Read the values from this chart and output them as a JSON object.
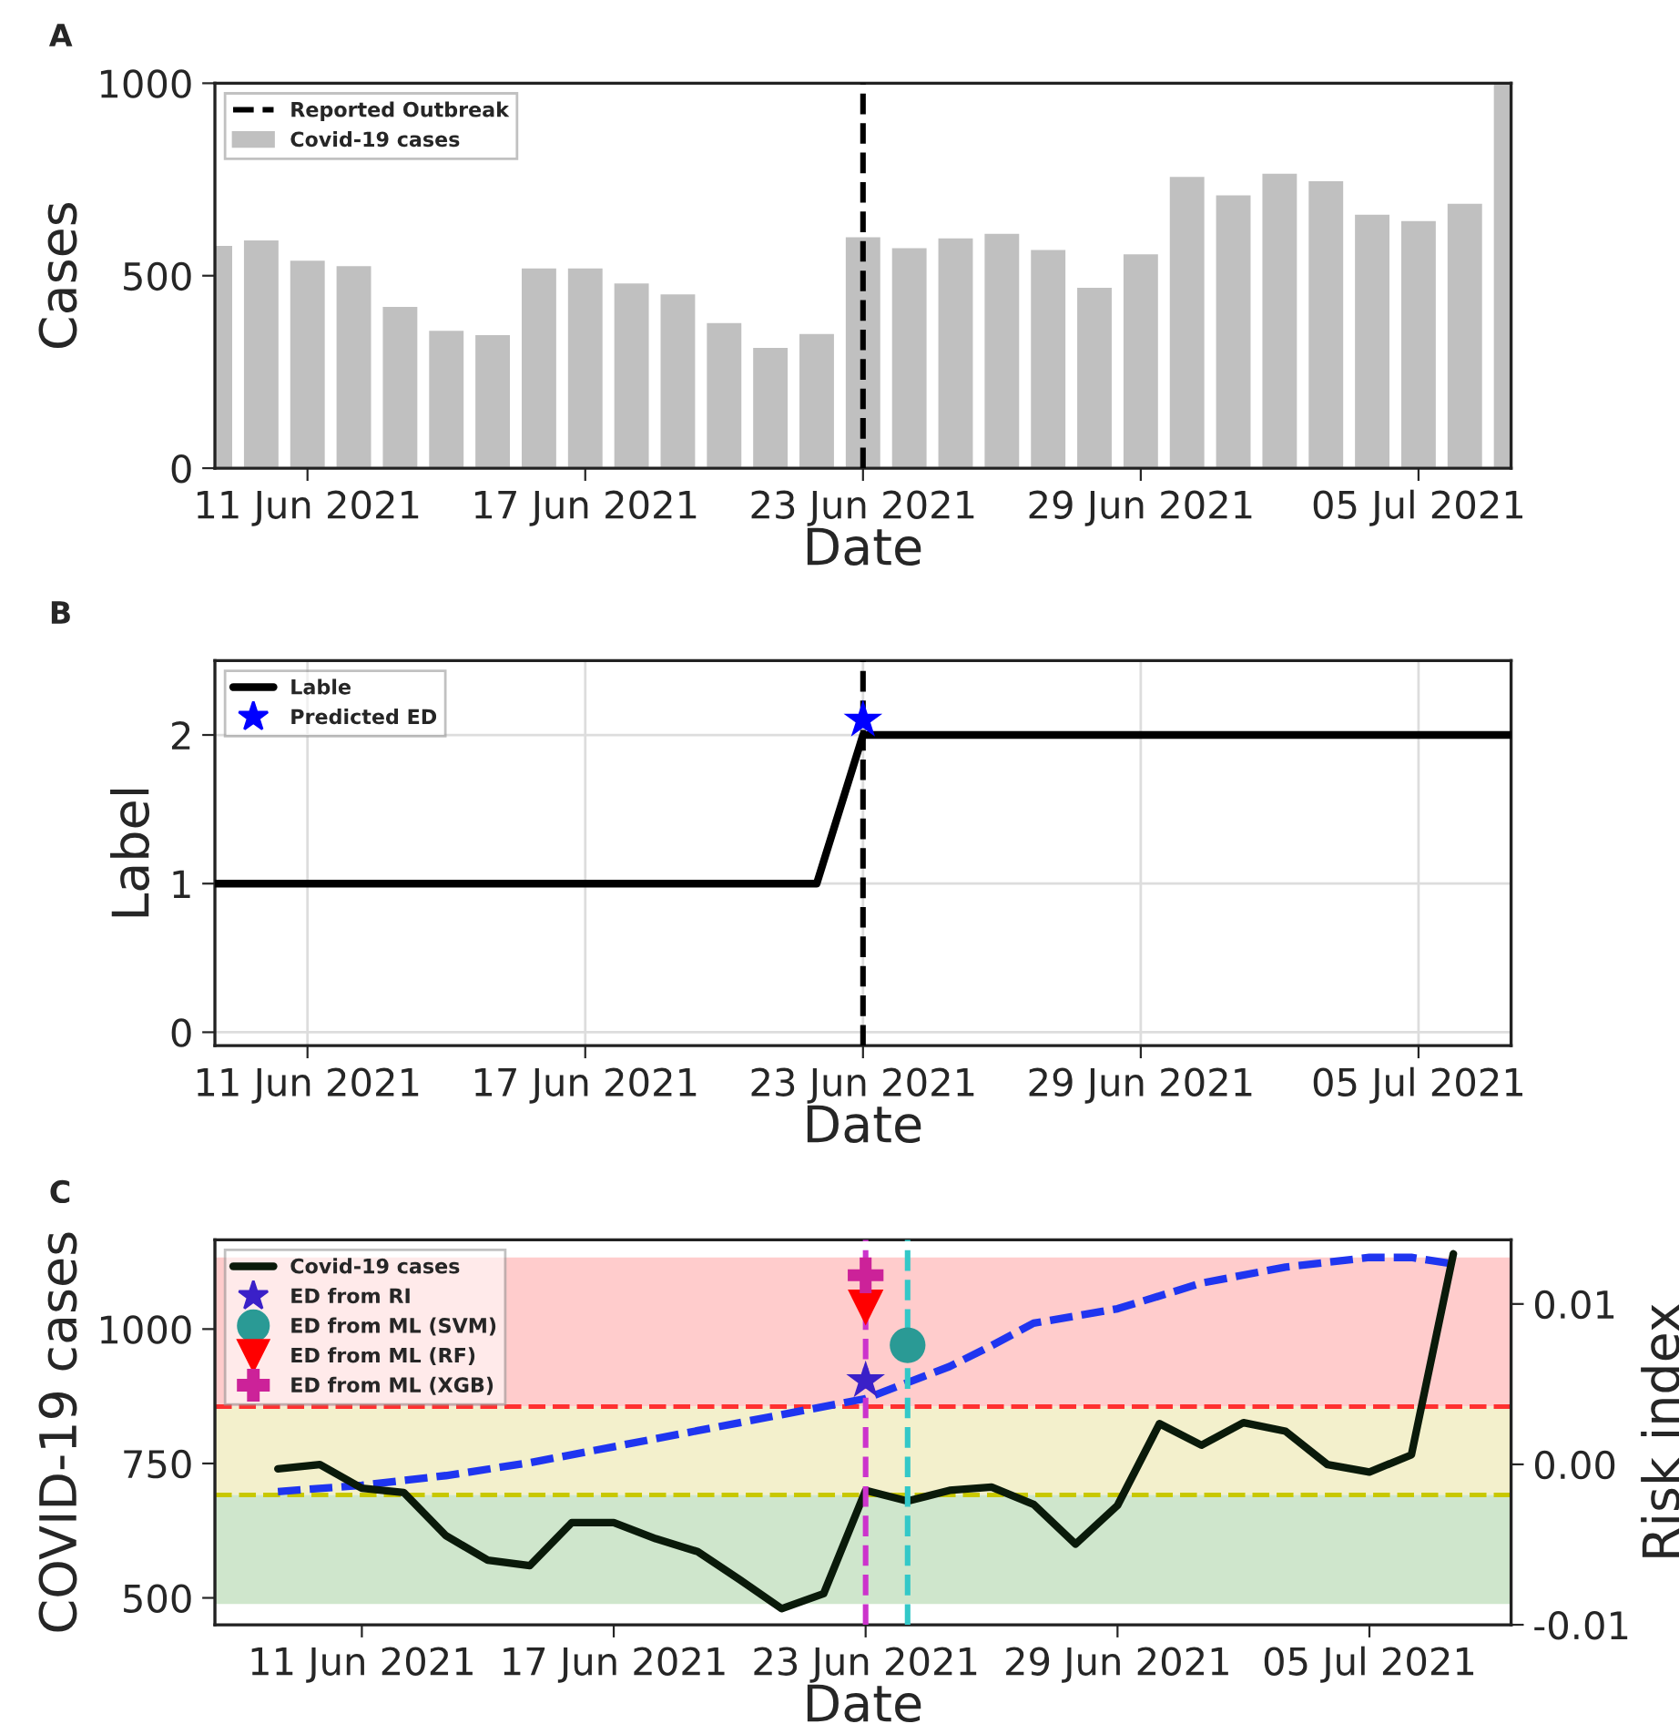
{
  "chart_data": [
    {
      "type": "bar",
      "annotations": [
        "A"
      ],
      "xlabel": "Date",
      "ylabel": "Cases",
      "x": [
        "2021-06-09",
        "2021-06-10",
        "2021-06-11",
        "2021-06-12",
        "2021-06-13",
        "2021-06-14",
        "2021-06-15",
        "2021-06-16",
        "2021-06-17",
        "2021-06-18",
        "2021-06-19",
        "2021-06-20",
        "2021-06-21",
        "2021-06-22",
        "2021-06-23",
        "2021-06-24",
        "2021-06-25",
        "2021-06-26",
        "2021-06-27",
        "2021-06-28",
        "2021-06-29",
        "2021-06-30",
        "2021-07-01",
        "2021-07-02",
        "2021-07-03",
        "2021-07-04",
        "2021-07-05",
        "2021-07-06",
        "2021-07-07"
      ],
      "series": [
        {
          "name": "Covid-19 cases",
          "color": "#c0c0c0",
          "values": [
            581,
            595,
            542,
            528,
            422,
            360,
            349,
            522,
            522,
            483,
            455,
            380,
            316,
            352,
            603,
            575,
            600,
            612,
            570,
            472,
            559,
            760,
            712,
            768,
            749,
            662,
            645,
            690,
            1000
          ]
        }
      ],
      "ref_lines": [
        {
          "axis": "x",
          "value": "2021-06-23",
          "label": "Reported Outbreak",
          "color": "#000000",
          "line_style": "dashed"
        }
      ],
      "xlim": [
        "2021-06-09",
        "2021-07-07"
      ],
      "xticks": [
        {
          "value": "2021-06-11",
          "label": "11 Jun 2021"
        },
        {
          "value": "2021-06-17",
          "label": "17 Jun 2021"
        },
        {
          "value": "2021-06-23",
          "label": "23 Jun 2021"
        },
        {
          "value": "2021-06-29",
          "label": "29 Jun 2021"
        },
        {
          "value": "2021-07-05",
          "label": "05 Jul 2021"
        }
      ],
      "ylim": [
        0,
        1000
      ],
      "yticks": [
        0,
        500,
        1000
      ],
      "grid": false,
      "legend": "top left"
    },
    {
      "type": "line",
      "annotations": [
        "B"
      ],
      "xlabel": "Date",
      "ylabel": "Label",
      "x": [
        "2021-06-09",
        "2021-06-10",
        "2021-06-11",
        "2021-06-12",
        "2021-06-13",
        "2021-06-14",
        "2021-06-15",
        "2021-06-16",
        "2021-06-17",
        "2021-06-18",
        "2021-06-19",
        "2021-06-20",
        "2021-06-21",
        "2021-06-22",
        "2021-06-23",
        "2021-06-24",
        "2021-06-25",
        "2021-06-26",
        "2021-06-27",
        "2021-06-28",
        "2021-06-29",
        "2021-06-30",
        "2021-07-01",
        "2021-07-02",
        "2021-07-03",
        "2021-07-04",
        "2021-07-05",
        "2021-07-06",
        "2021-07-07"
      ],
      "series": [
        {
          "name": "Lable",
          "color": "#000000",
          "line_style": "solid",
          "marker": "none",
          "values": [
            1,
            1,
            1,
            1,
            1,
            1,
            1,
            1,
            1,
            1,
            1,
            1,
            1,
            1,
            2,
            2,
            2,
            2,
            2,
            2,
            2,
            2,
            2,
            2,
            2,
            2,
            2,
            2,
            2
          ]
        },
        {
          "name": "Predicted ED",
          "type": "scatter",
          "marker": "star",
          "color": "#0000ff",
          "x": [
            "2021-06-23"
          ],
          "values": [
            2.1
          ]
        }
      ],
      "ref_lines": [
        {
          "axis": "x",
          "value": "2021-06-23",
          "color": "#000000",
          "line_style": "dashed"
        }
      ],
      "xlim": [
        "2021-06-09",
        "2021-07-07"
      ],
      "xticks": [
        {
          "value": "2021-06-11",
          "label": "11 Jun 2021"
        },
        {
          "value": "2021-06-17",
          "label": "17 Jun 2021"
        },
        {
          "value": "2021-06-23",
          "label": "23 Jun 2021"
        },
        {
          "value": "2021-06-29",
          "label": "29 Jun 2021"
        },
        {
          "value": "2021-07-05",
          "label": "05 Jul 2021"
        }
      ],
      "ylim": [
        -0.09,
        2.5
      ],
      "yticks": [
        0,
        1,
        2
      ],
      "grid": true,
      "legend": "top left"
    },
    {
      "type": "line",
      "annotations": [
        "C"
      ],
      "xlabel": "Date",
      "ylabel": "COVID-19 cases",
      "y2label": "Risk index",
      "x": [
        "2021-06-09",
        "2021-06-10",
        "2021-06-11",
        "2021-06-12",
        "2021-06-13",
        "2021-06-14",
        "2021-06-15",
        "2021-06-16",
        "2021-06-17",
        "2021-06-18",
        "2021-06-19",
        "2021-06-20",
        "2021-06-21",
        "2021-06-22",
        "2021-06-23",
        "2021-06-24",
        "2021-06-25",
        "2021-06-26",
        "2021-06-27",
        "2021-06-28",
        "2021-06-29",
        "2021-06-30",
        "2021-07-01",
        "2021-07-02",
        "2021-07-03",
        "2021-07-04",
        "2021-07-05",
        "2021-07-06",
        "2021-07-07"
      ],
      "series": [
        {
          "name": "Covid-19 cases",
          "color": "#0a1a0a",
          "line_style": "solid",
          "marker": "none",
          "values": [
            740,
            748,
            704,
            696,
            616,
            570,
            560,
            640,
            640,
            610,
            586,
            534,
            480,
            508,
            700,
            680,
            700,
            706,
            674,
            600,
            672,
            824,
            784,
            826,
            810,
            748,
            734,
            766,
            1140
          ]
        },
        {
          "axis": "y2",
          "color": "#1f35f0",
          "line_style": "dashed",
          "marker": "none",
          "x": [
            "2021-06-09",
            "2021-06-11",
            "2021-06-13",
            "2021-06-15",
            "2021-06-17",
            "2021-06-19",
            "2021-06-21",
            "2021-06-23",
            "2021-06-24",
            "2021-06-25",
            "2021-06-26",
            "2021-06-27",
            "2021-06-29",
            "2021-07-01",
            "2021-07-03",
            "2021-07-05",
            "2021-07-06",
            "2021-07-07"
          ],
          "values": [
            -0.0017,
            -0.0013,
            -0.0007,
            0.0001,
            0.0011,
            0.0021,
            0.0031,
            0.0041,
            0.0051,
            0.0061,
            0.0074,
            0.0088,
            0.0097,
            0.0113,
            0.0123,
            0.0129,
            0.0129,
            0.0125
          ]
        },
        {
          "name": "ED from RI",
          "type": "scatter",
          "marker": "star",
          "color": "#3a20c8",
          "x": [
            "2021-06-23"
          ],
          "values": [
            904
          ]
        },
        {
          "name": "ED from ML (SVM)",
          "type": "scatter",
          "marker": "circle",
          "color": "#2a9a95",
          "x": [
            "2021-06-24"
          ],
          "values": [
            970
          ]
        },
        {
          "name": "ED from ML (RF)",
          "type": "scatter",
          "marker": "triangle",
          "color": "#ff0000",
          "x": [
            "2021-06-23"
          ],
          "values": [
            1040
          ]
        },
        {
          "name": "ED from ML (XGB)",
          "type": "scatter",
          "marker": "cross",
          "color": "#cc2299",
          "x": [
            "2021-06-23"
          ],
          "values": [
            1100
          ]
        }
      ],
      "bands": [
        {
          "axis": "y2",
          "from": 0.0036,
          "to": 0.0129,
          "color": "#ffcccc"
        },
        {
          "axis": "y2",
          "from": -0.0019,
          "to": 0.0036,
          "color": "#f3f0cc"
        },
        {
          "axis": "y2",
          "from": -0.0087,
          "to": -0.0019,
          "color": "#cfe6cc"
        }
      ],
      "ref_lines": [
        {
          "axis": "y2",
          "value": 0.0036,
          "color": "#ff3030",
          "line_style": "dashed"
        },
        {
          "axis": "y2",
          "value": -0.0019,
          "color": "#c8c800",
          "line_style": "dashed"
        },
        {
          "axis": "x",
          "value": "2021-06-23",
          "color": "#cc33cc",
          "line_style": "dashed"
        },
        {
          "axis": "x",
          "value": "2021-06-24",
          "color": "#33c8c8",
          "line_style": "dashed"
        }
      ],
      "xlim": [
        "2021-06-07T12:00",
        "2021-07-08T09:00"
      ],
      "xticks": [
        {
          "value": "2021-06-11",
          "label": "11 Jun 2021"
        },
        {
          "value": "2021-06-17",
          "label": "17 Jun 2021"
        },
        {
          "value": "2021-06-23",
          "label": "23 Jun 2021"
        },
        {
          "value": "2021-06-29",
          "label": "29 Jun 2021"
        },
        {
          "value": "2021-07-05",
          "label": "05 Jul 2021"
        }
      ],
      "ylim": [
        450,
        1166
      ],
      "yticks": [
        500,
        750,
        1000
      ],
      "y2lim": [
        -0.01,
        0.014
      ],
      "y2ticks": [
        -0.01,
        {
          "value": 0.0,
          "label": "0.00"
        },
        0.01
      ],
      "grid": false,
      "legend": "top left"
    }
  ]
}
